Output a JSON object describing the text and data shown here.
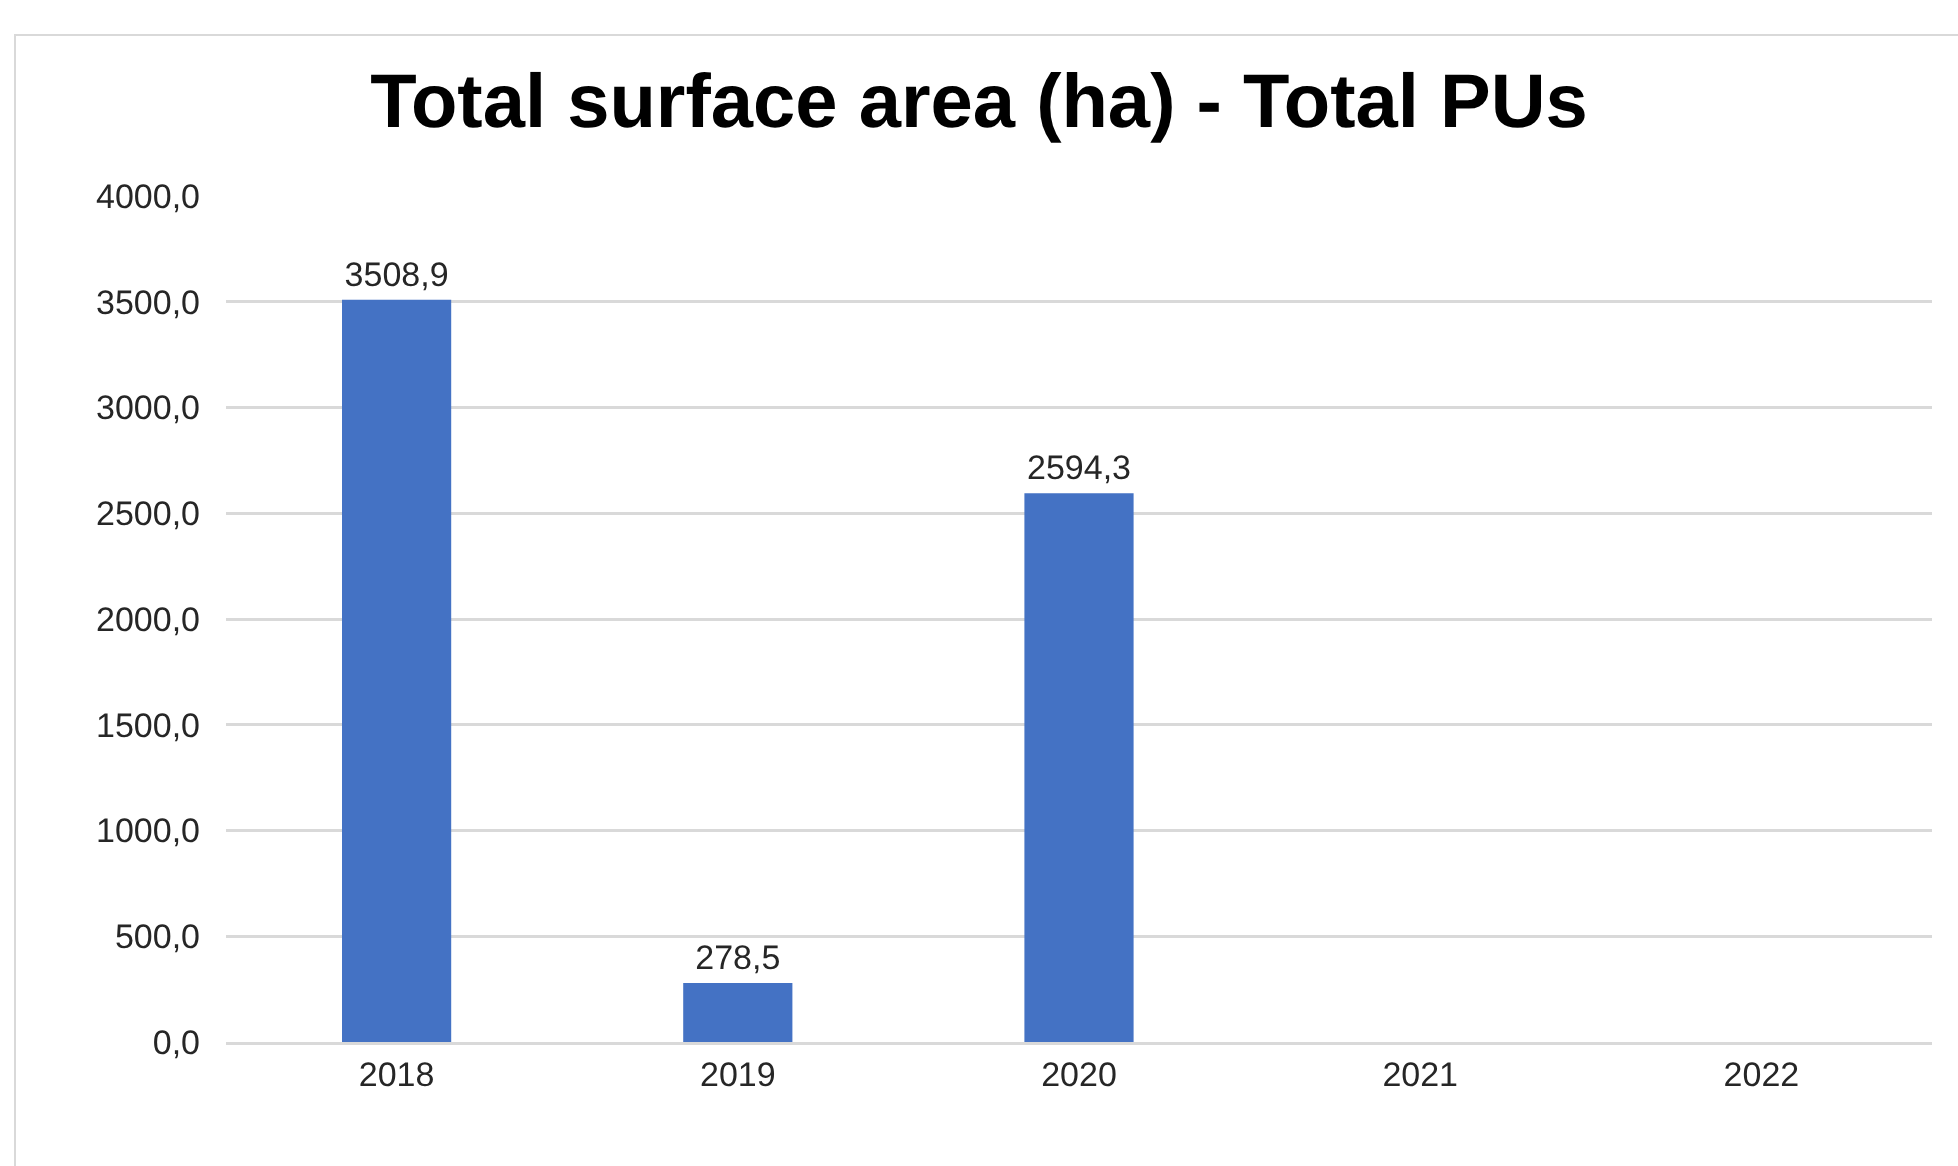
{
  "chart_data": {
    "type": "bar",
    "title": "Total surface area (ha) - Total PUs",
    "categories": [
      "2018",
      "2019",
      "2020",
      "2021",
      "2022"
    ],
    "values": [
      3508.9,
      278.5,
      2594.3,
      null,
      null
    ],
    "value_labels": [
      "3508,9",
      "278,5",
      "2594,3",
      null,
      null
    ],
    "color": "#4472c4",
    "ylim": [
      0,
      4000
    ],
    "yticks": [
      {
        "value": 0,
        "label": "0,0"
      },
      {
        "value": 500,
        "label": "500,0"
      },
      {
        "value": 1000,
        "label": "1000,0"
      },
      {
        "value": 1500,
        "label": "1500,0"
      },
      {
        "value": 2000,
        "label": "2000,0"
      },
      {
        "value": 2500,
        "label": "2500,0"
      },
      {
        "value": 3000,
        "label": "3000,0"
      },
      {
        "value": 3500,
        "label": "3500,0"
      },
      {
        "value": 4000,
        "label": "4000,0"
      }
    ],
    "grid": "y"
  }
}
